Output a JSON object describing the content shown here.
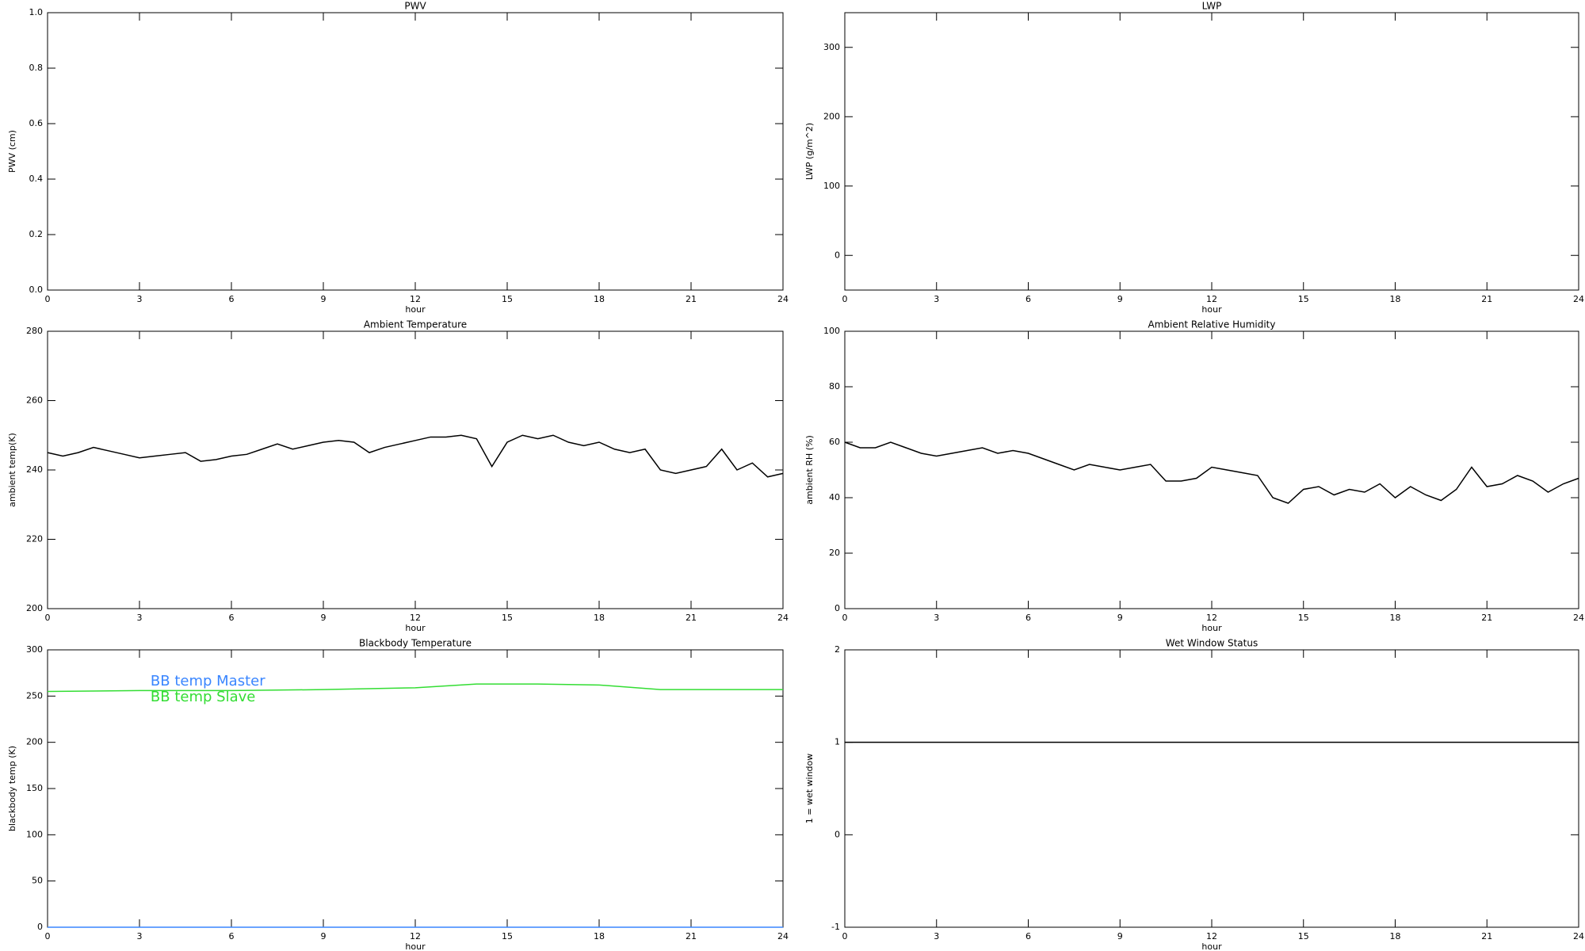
{
  "chart_data": [
    {
      "type": "line",
      "title": "PWV",
      "xlabel": "hour",
      "ylabel": "PWV (cm)",
      "xlim": [
        0,
        24
      ],
      "xticks": [
        0,
        3,
        6,
        9,
        12,
        15,
        18,
        21,
        24
      ],
      "ylim": [
        0,
        1
      ],
      "yticks": [
        {
          "value": 0,
          "label": "0.0"
        },
        {
          "value": 0.2,
          "label": "0.2"
        },
        {
          "value": 0.4,
          "label": "0.4"
        },
        {
          "value": 0.6,
          "label": "0.6"
        },
        {
          "value": 0.8,
          "label": "0.8"
        },
        {
          "value": 1,
          "label": "1.0"
        }
      ],
      "x": [],
      "series": []
    },
    {
      "type": "line",
      "title": "LWP",
      "xlabel": "hour",
      "ylabel": "LWP (g/m^2)",
      "xlim": [
        0,
        24
      ],
      "xticks": [
        0,
        3,
        6,
        9,
        12,
        15,
        18,
        21,
        24
      ],
      "ylim": [
        -50,
        350
      ],
      "yticks": [
        0,
        100,
        200,
        300
      ],
      "x": [],
      "series": []
    },
    {
      "type": "line",
      "title": "Ambient Temperature",
      "xlabel": "hour",
      "ylabel": "ambient temp(K)",
      "xlim": [
        0,
        24
      ],
      "xticks": [
        0,
        3,
        6,
        9,
        12,
        15,
        18,
        21,
        24
      ],
      "ylim": [
        200,
        280
      ],
      "yticks": [
        200,
        220,
        240,
        260,
        280
      ],
      "x": [
        0,
        0.5,
        1,
        1.5,
        2,
        2.5,
        3,
        3.5,
        4,
        4.5,
        5,
        5.5,
        6,
        6.5,
        7,
        7.5,
        8,
        8.5,
        9,
        9.5,
        10,
        10.5,
        11,
        11.5,
        12,
        12.5,
        13,
        13.5,
        14,
        14.5,
        15,
        15.5,
        16,
        16.5,
        17,
        17.5,
        18,
        18.5,
        19,
        19.5,
        20,
        20.5,
        21,
        21.5,
        22,
        22.5,
        23,
        23.5,
        24
      ],
      "series": [
        {
          "color": "#000000",
          "values": [
            245,
            244,
            245,
            246.5,
            245.5,
            244.5,
            243.5,
            244,
            244.5,
            245,
            242.5,
            243,
            244,
            244.5,
            246,
            247.5,
            246,
            247,
            248,
            248.5,
            248,
            245,
            246.5,
            247.5,
            248.5,
            249.5,
            249.5,
            250,
            249,
            241,
            248,
            250,
            249,
            250,
            248,
            247,
            248,
            246,
            245,
            246,
            240,
            239,
            240,
            241,
            246,
            240,
            242,
            238,
            239
          ]
        }
      ]
    },
    {
      "type": "line",
      "title": "Ambient Relative Humidity",
      "xlabel": "hour",
      "ylabel": "ambient RH (%)",
      "xlim": [
        0,
        24
      ],
      "xticks": [
        0,
        3,
        6,
        9,
        12,
        15,
        18,
        21,
        24
      ],
      "ylim": [
        0,
        100
      ],
      "yticks": [
        0,
        20,
        40,
        60,
        80,
        100
      ],
      "x": [
        0,
        0.5,
        1,
        1.5,
        2,
        2.5,
        3,
        3.5,
        4,
        4.5,
        5,
        5.5,
        6,
        6.5,
        7,
        7.5,
        8,
        8.5,
        9,
        9.5,
        10,
        10.5,
        11,
        11.5,
        12,
        12.5,
        13,
        13.5,
        14,
        14.5,
        15,
        15.5,
        16,
        16.5,
        17,
        17.5,
        18,
        18.5,
        19,
        19.5,
        20,
        20.5,
        21,
        21.5,
        22,
        22.5,
        23,
        23.5,
        24
      ],
      "series": [
        {
          "color": "#000000",
          "values": [
            60,
            58,
            58,
            60,
            58,
            56,
            55,
            56,
            57,
            58,
            56,
            57,
            56,
            54,
            52,
            50,
            52,
            51,
            50,
            51,
            52,
            46,
            46,
            47,
            51,
            50,
            49,
            48,
            40,
            38,
            43,
            44,
            41,
            43,
            42,
            45,
            40,
            44,
            41,
            39,
            43,
            51,
            44,
            45,
            48,
            46,
            42,
            45,
            47
          ]
        }
      ]
    },
    {
      "type": "line",
      "title": "Blackbody Temperature",
      "xlabel": "hour",
      "ylabel": "blackbody temp (K)",
      "xlim": [
        0,
        24
      ],
      "xticks": [
        0,
        3,
        6,
        9,
        12,
        15,
        18,
        21,
        24
      ],
      "ylim": [
        0,
        300
      ],
      "yticks": [
        0,
        50,
        100,
        150,
        200,
        250,
        300
      ],
      "legend": "upper-left",
      "x": [
        0,
        3,
        6,
        9,
        12,
        14,
        16,
        18,
        20,
        24
      ],
      "series": [
        {
          "name": "BB temp Master",
          "color": "#3a86ff",
          "values": [
            0,
            0,
            0,
            0,
            0,
            0,
            0,
            0,
            0,
            0
          ]
        },
        {
          "name": "BB temp Slave",
          "color": "#33dd33",
          "values": [
            255,
            256,
            256,
            257,
            259,
            263,
            263,
            262,
            257,
            257
          ]
        }
      ]
    },
    {
      "type": "line",
      "title": "Wet Window Status",
      "xlabel": "hour",
      "ylabel": "1 = wet window",
      "xlim": [
        0,
        24
      ],
      "xticks": [
        0,
        3,
        6,
        9,
        12,
        15,
        18,
        21,
        24
      ],
      "ylim": [
        -1,
        2
      ],
      "yticks": [
        -1,
        0,
        1,
        2
      ],
      "x": [
        0,
        24
      ],
      "series": [
        {
          "color": "#000000",
          "values": [
            1,
            1
          ]
        }
      ]
    }
  ]
}
